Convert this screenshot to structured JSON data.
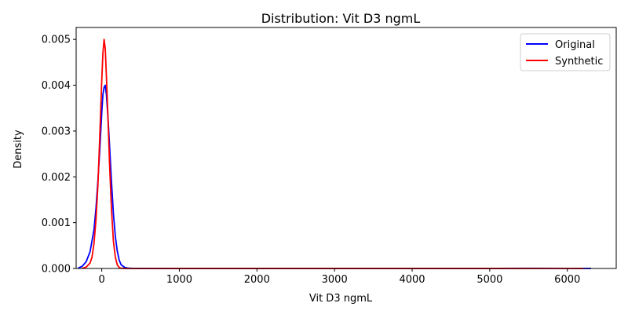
{
  "chart_data": {
    "type": "line",
    "title": "Distribution: Vit D3 ngmL",
    "xlabel": "Vit D3 ngmL",
    "ylabel": "Density",
    "xlim": [
      -330,
      6630
    ],
    "ylim": [
      0,
      0.00526
    ],
    "xticks": [
      0,
      1000,
      2000,
      3000,
      4000,
      5000,
      6000
    ],
    "xtick_labels": [
      "0",
      "1000",
      "2000",
      "3000",
      "4000",
      "5000",
      "6000"
    ],
    "yticks": [
      0,
      0.001,
      0.002,
      0.003,
      0.004,
      0.005
    ],
    "ytick_labels": [
      "0.000",
      "0.001",
      "0.002",
      "0.003",
      "0.004",
      "0.005"
    ],
    "grid": false,
    "legend_position": "top-right",
    "series": [
      {
        "name": "Original",
        "color": "#0000ff",
        "x": [
          -300,
          -250,
          -200,
          -150,
          -100,
          -75,
          -50,
          -25,
          0,
          15,
          30,
          45,
          60,
          80,
          100,
          125,
          150,
          175,
          200,
          225,
          250,
          300,
          350,
          400,
          500,
          1000,
          2000,
          3000,
          4000,
          5000,
          5500,
          6000,
          6300
        ],
        "y": [
          1e-05,
          5e-05,
          0.00015,
          0.00037,
          0.00085,
          0.0013,
          0.0019,
          0.0026,
          0.0034,
          0.0038,
          0.00395,
          0.004,
          0.0038,
          0.0033,
          0.0027,
          0.0019,
          0.0012,
          0.0007,
          0.00038,
          0.00018,
          8e-05,
          2e-05,
          5e-06,
          2e-06,
          1e-06,
          1e-06,
          1e-06,
          1e-06,
          1e-06,
          1e-06,
          3e-06,
          2e-06,
          1e-06
        ]
      },
      {
        "name": "Synthetic",
        "color": "#ff0000",
        "x": [
          -250,
          -200,
          -150,
          -125,
          -100,
          -75,
          -50,
          -25,
          0,
          15,
          30,
          45,
          60,
          80,
          100,
          125,
          150,
          175,
          200,
          225,
          250,
          300,
          400,
          1000,
          2000,
          3000,
          4000,
          5000,
          6000,
          6200
        ],
        "y": [
          5e-06,
          3e-05,
          0.00012,
          0.00025,
          0.00055,
          0.00105,
          0.0018,
          0.0029,
          0.0041,
          0.0047,
          0.005,
          0.0048,
          0.0042,
          0.0033,
          0.0023,
          0.0013,
          0.0006,
          0.00025,
          8e-05,
          2e-05,
          5e-06,
          1e-06,
          5e-07,
          1e-06,
          1e-06,
          1e-06,
          1e-06,
          1e-06,
          2e-06,
          1e-06
        ]
      }
    ]
  }
}
